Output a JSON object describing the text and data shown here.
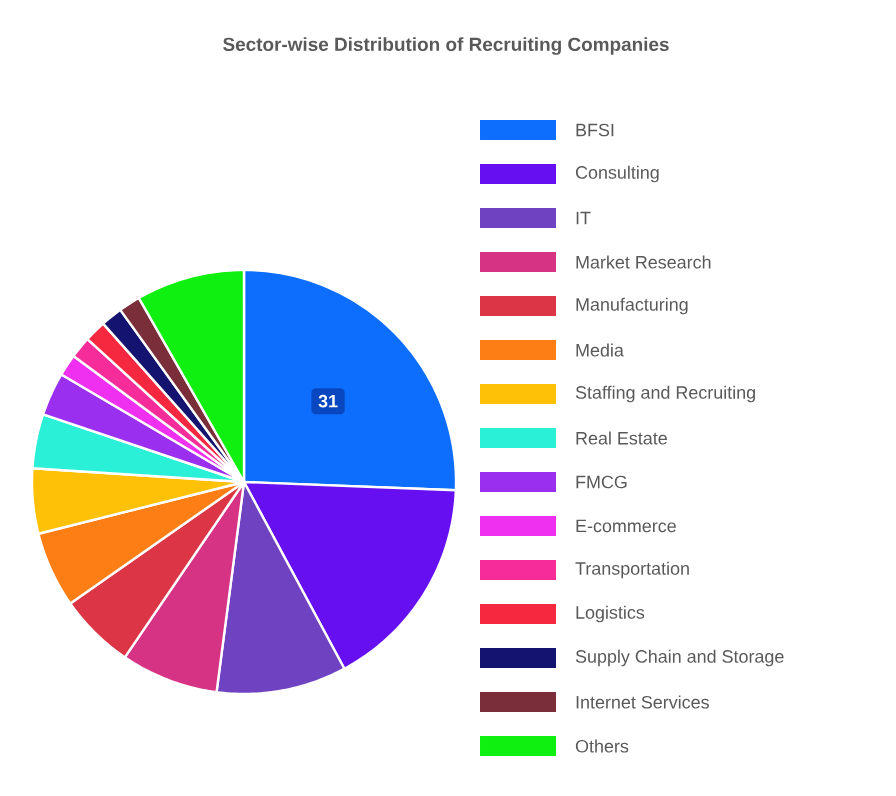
{
  "chart_data": {
    "type": "pie",
    "title": "Sector-wise Distribution of Recruiting Companies",
    "categories": [
      "BFSI",
      "Consulting",
      "IT",
      "Market Research",
      "Manufacturing",
      "Media",
      "Staffing and Recruiting",
      "Real Estate",
      "FMCG",
      "E-commerce",
      "Transportation",
      "Logistics",
      "Supply Chain and Storage",
      "Internet Services",
      "Others"
    ],
    "values": [
      31,
      20,
      12,
      9,
      7,
      7,
      6,
      5,
      4,
      2,
      2,
      2,
      2,
      2,
      10
    ],
    "value_labels": [
      "31",
      null,
      null,
      null,
      null,
      null,
      null,
      null,
      null,
      null,
      null,
      null,
      null,
      null,
      null
    ],
    "colors": [
      "#0d6efd",
      "#6610f2",
      "#6f42c1",
      "#d63384",
      "#dc3545",
      "#fd7e14",
      "#ffc107",
      "#29f0d6",
      "#9b2ff0",
      "#f030f0",
      "#f52c9a",
      "#f5283f",
      "#141470",
      "#7a2e3a",
      "#10f010"
    ],
    "legend": "right"
  }
}
